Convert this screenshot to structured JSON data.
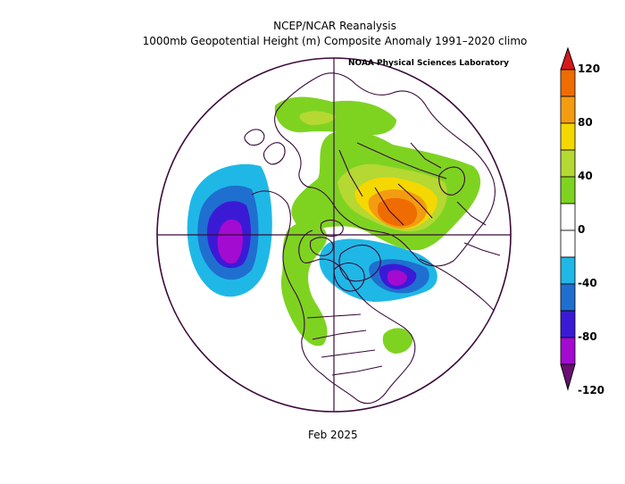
{
  "header": {
    "title_line1": "NCEP/NCAR Reanalysis",
    "title_line2": "1000mb Geopotential Height (m) Composite Anomaly 1991–2020 climo",
    "credit": "NOAA Physical Sciences Laboratory"
  },
  "footer": {
    "date": "Feb 2025"
  },
  "colorbar": {
    "labels": [
      "120",
      "80",
      "40",
      "0",
      "-40",
      "-80",
      "-120"
    ],
    "colors": [
      "#d7191c",
      "#ef6c00",
      "#f39c12",
      "#f5d800",
      "#b5d832",
      "#7ed321",
      "#ffffff",
      "#ffffff",
      "#1fb8e6",
      "#1f6fd0",
      "#3b1ad6",
      "#a30bd0",
      "#6a0d75"
    ]
  },
  "map": {
    "projection": "north-polar-stereographic",
    "outline_color": "#3a0a3a"
  }
}
